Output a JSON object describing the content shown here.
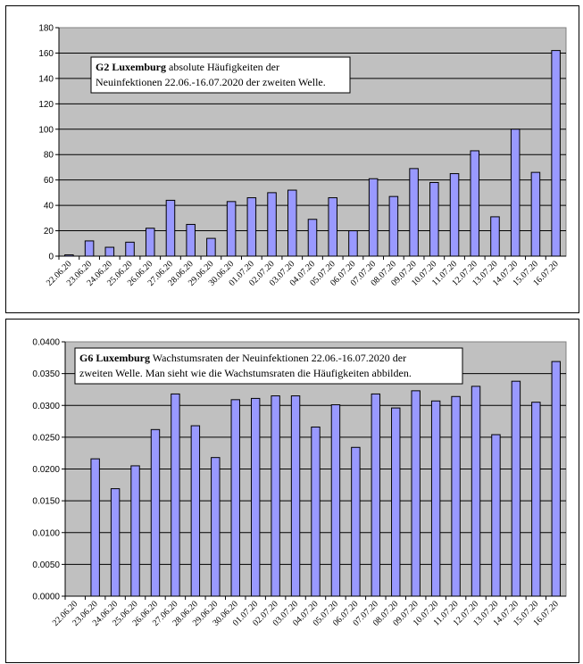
{
  "chart_data": [
    {
      "type": "bar",
      "categories": [
        "22.06.20",
        "23.06.20",
        "24.06.20",
        "25.06.20",
        "26.06.20",
        "27.06.20",
        "28.06.20",
        "29.06.20",
        "30.06.20",
        "01.07.20",
        "02.07.20",
        "03.07.20",
        "04.07.20",
        "05.07.20",
        "06.07.20",
        "07.07.20",
        "08.07.20",
        "09.07.20",
        "10.07.20",
        "11.07.20",
        "12.07.20",
        "13.07.20",
        "14.07.20",
        "15.07.20",
        "16.07.20"
      ],
      "values": [
        1,
        12,
        7,
        11,
        22,
        44,
        25,
        14,
        43,
        46,
        50,
        52,
        29,
        46,
        20,
        61,
        47,
        69,
        58,
        65,
        83,
        31,
        100,
        66,
        162
      ],
      "ylim": [
        0,
        180
      ],
      "yticks": [
        "0",
        "20",
        "40",
        "60",
        "80",
        "100",
        "120",
        "140",
        "160",
        "180"
      ],
      "title_bold": "G2 Luxemburg",
      "title_line1": " absolute Häufigkeiten der",
      "title_line2": "Neuinfektionen 22.06.-16.07.2020 der zweiten Welle.",
      "grid": true,
      "bar_color": "#9999ff",
      "plot_bg": "#c0c0c0"
    },
    {
      "type": "bar",
      "categories": [
        "22.06.20",
        "23.06.20",
        "24.06.20",
        "25.06.20",
        "26.06.20",
        "27.06.20",
        "28.06.20",
        "29.06.20",
        "30.06.20",
        "01.07.20",
        "02.07.20",
        "03.07.20",
        "04.07.20",
        "05.07.20",
        "06.07.20",
        "07.07.20",
        "08.07.20",
        "09.07.20",
        "10.07.20",
        "11.07.20",
        "12.07.20",
        "13.07.20",
        "14.07.20",
        "15.07.20",
        "16.07.20"
      ],
      "values": [
        0,
        0.0216,
        0.0169,
        0.0205,
        0.0262,
        0.0318,
        0.0268,
        0.0218,
        0.0309,
        0.0311,
        0.0315,
        0.0315,
        0.0266,
        0.0301,
        0.0234,
        0.0318,
        0.0296,
        0.0323,
        0.0307,
        0.0314,
        0.033,
        0.0254,
        0.0338,
        0.0305,
        0.0369
      ],
      "ylim": [
        0,
        0.04
      ],
      "yticks": [
        "0.0000",
        "0.0050",
        "0.0100",
        "0.0150",
        "0.0200",
        "0.0250",
        "0.0300",
        "0.0350",
        "0.0400"
      ],
      "title_bold": "G6 Luxemburg",
      "title_line1": " Wachstumsraten der Neuinfektionen 22.06.-16.07.2020 der",
      "title_line2": "zweiten Welle. Man sieht wie die Wachstumsraten die Häufigkeiten abbilden.",
      "grid": true,
      "bar_color": "#9999ff",
      "plot_bg": "#c0c0c0"
    }
  ]
}
